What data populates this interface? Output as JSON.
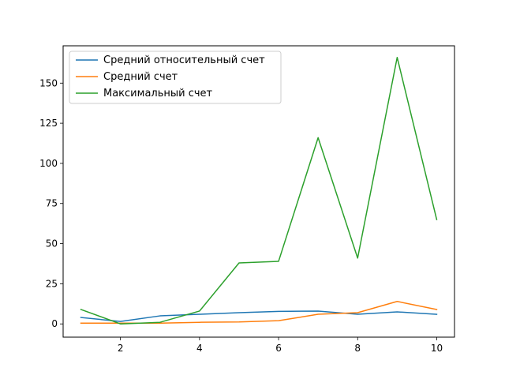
{
  "chart_data": {
    "type": "line",
    "title": "",
    "xlabel": "",
    "ylabel": "",
    "x": [
      1,
      2,
      3,
      4,
      5,
      6,
      7,
      8,
      9,
      10
    ],
    "xlim": [
      0.55,
      10.45
    ],
    "ylim": [
      -8.25,
      173.25
    ],
    "xticks": [
      2,
      4,
      6,
      8,
      10
    ],
    "yticks": [
      0,
      25,
      50,
      75,
      100,
      125,
      150
    ],
    "grid": false,
    "legend_position": "top-left",
    "series": [
      {
        "name": "Средний относительный счет",
        "color": "#1f77b4",
        "values": [
          4,
          1.5,
          5,
          6,
          7,
          7.8,
          8,
          6,
          7.5,
          6
        ]
      },
      {
        "name": "Средний счет",
        "color": "#ff7f0e",
        "values": [
          0.5,
          0.5,
          0.5,
          1,
          1.2,
          2,
          6,
          7,
          14,
          9
        ]
      },
      {
        "name": "Максимальный счет",
        "color": "#2ca02c",
        "values": [
          9,
          0,
          1,
          8,
          38,
          39,
          116,
          41,
          166,
          65
        ]
      }
    ]
  }
}
